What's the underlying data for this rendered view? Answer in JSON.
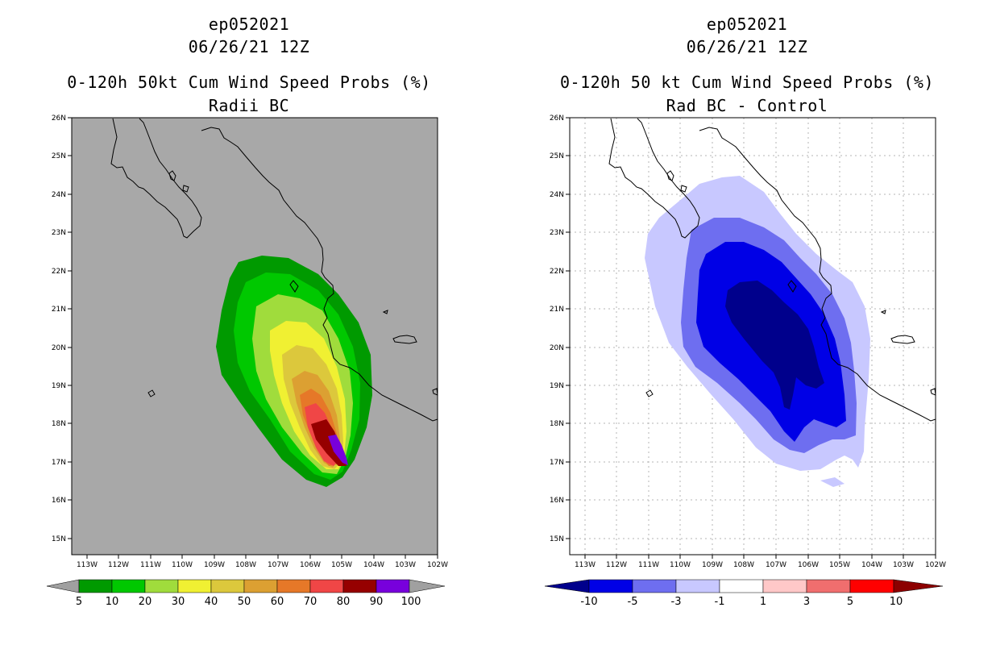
{
  "panels": [
    {
      "title_storm": "ep052021",
      "title_time": "06/26/21 12Z",
      "title_product": "0-120h 50kt Cum Wind Speed Probs (%)",
      "title_sub": "Radii BC"
    },
    {
      "title_storm": "ep052021",
      "title_time": "06/26/21 12Z",
      "title_product": "0-120h 50 kt Cum Wind Speed Probs (%)",
      "title_sub": "Rad BC - Control"
    }
  ],
  "axes": {
    "lat_labels": [
      "26N",
      "25N",
      "24N",
      "23N",
      "22N",
      "21N",
      "20N",
      "19N",
      "18N",
      "17N",
      "16N",
      "15N"
    ],
    "lon_labels": [
      "113W",
      "112W",
      "111W",
      "110W",
      "109W",
      "108W",
      "107W",
      "106W",
      "105W",
      "104W",
      "103W",
      "102W"
    ]
  },
  "colorbars": {
    "left": {
      "labels": [
        "5",
        "10",
        "20",
        "30",
        "40",
        "50",
        "60",
        "70",
        "80",
        "90",
        "100"
      ],
      "colors": [
        "#009a00",
        "#00c800",
        "#a0dc3c",
        "#f0f032",
        "#dcc83c",
        "#dca032",
        "#e67828",
        "#f04646",
        "#960000",
        "#7800dc"
      ],
      "under_color": "#a0a0a0",
      "over_color": "#a0a0a0"
    },
    "right": {
      "labels": [
        "-10",
        "-5",
        "-3",
        "-1",
        "1",
        "3",
        "5",
        "10"
      ],
      "colors": [
        "#0000e6",
        "#6e6ef0",
        "#c8c8ff",
        "#ffffff",
        "#ffc8c8",
        "#f06e6e",
        "#ff0000"
      ],
      "under_color": "#00008c",
      "over_color": "#8c0000"
    }
  },
  "colors": {
    "map_bg_left": "#a8a8a8",
    "map_bg_right": "#ffffff",
    "coast": "#000000",
    "grid": "#b4b4b4"
  }
}
